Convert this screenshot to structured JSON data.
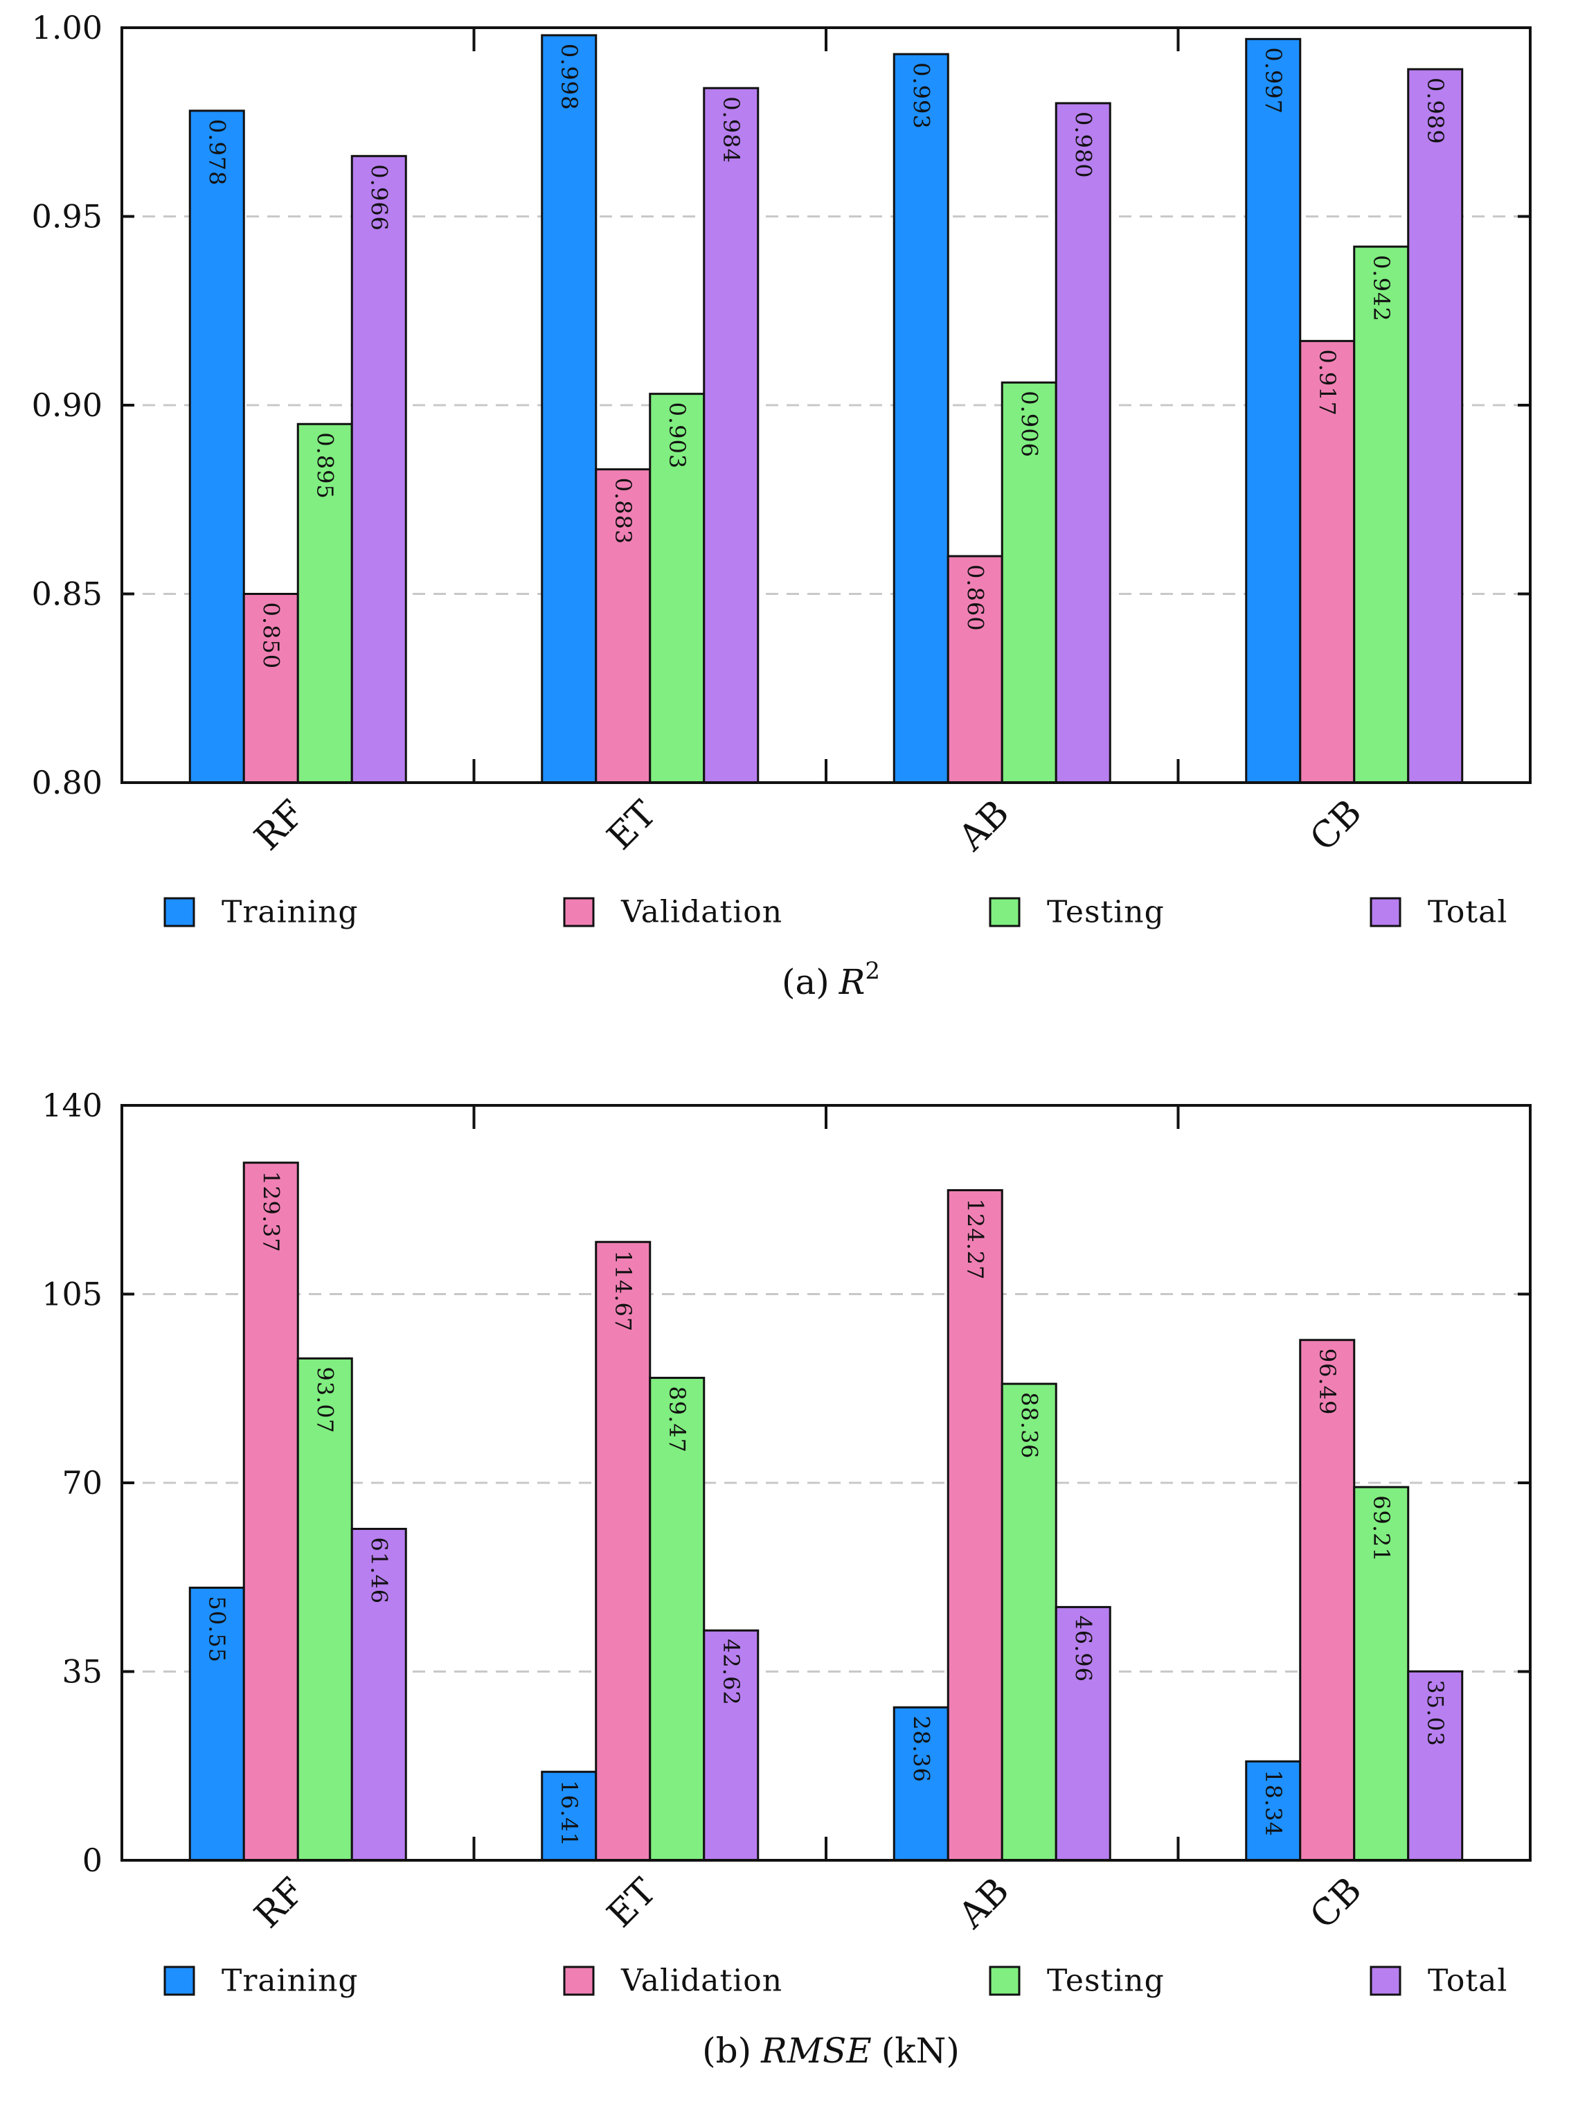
{
  "colors": {
    "Training": "#1e90ff",
    "Validation": "#f080b4",
    "Testing": "#80ee80",
    "Total": "#b87ff0"
  },
  "chart_data": [
    {
      "type": "bar",
      "caption_prefix": "(a)",
      "caption_symbol": "R",
      "caption_sup": "2",
      "categories": [
        "RF",
        "ET",
        "AB",
        "CB"
      ],
      "series": [
        {
          "name": "Training",
          "values": [
            0.978,
            0.998,
            0.993,
            0.997
          ],
          "labels": [
            "0.978",
            "0.998",
            "0.993",
            "0.997"
          ]
        },
        {
          "name": "Validation",
          "values": [
            0.85,
            0.883,
            0.86,
            0.917
          ],
          "labels": [
            "0.850",
            "0.883",
            "0.860",
            "0.917"
          ]
        },
        {
          "name": "Testing",
          "values": [
            0.895,
            0.903,
            0.906,
            0.942
          ],
          "labels": [
            "0.895",
            "0.903",
            "0.906",
            "0.942"
          ]
        },
        {
          "name": "Total",
          "values": [
            0.966,
            0.984,
            0.98,
            0.989
          ],
          "labels": [
            "0.966",
            "0.984",
            "0.980",
            "0.989"
          ]
        }
      ],
      "ylim": [
        0.8,
        1.0
      ],
      "yticks": [
        0.8,
        0.85,
        0.9,
        0.95,
        1.0
      ],
      "ytick_labels": [
        "0.80",
        "0.85",
        "0.90",
        "0.95",
        "1.00"
      ],
      "legend": [
        "Training",
        "Validation",
        "Testing",
        "Total"
      ]
    },
    {
      "type": "bar",
      "caption_prefix": "(b)",
      "caption_symbol": "RMSE",
      "caption_suffix": "(kN)",
      "categories": [
        "RF",
        "ET",
        "AB",
        "CB"
      ],
      "series": [
        {
          "name": "Training",
          "values": [
            50.55,
            16.41,
            28.36,
            18.34
          ],
          "labels": [
            "50.55",
            "16.41",
            "28.36",
            "18.34"
          ]
        },
        {
          "name": "Validation",
          "values": [
            129.37,
            114.67,
            124.27,
            96.49
          ],
          "labels": [
            "129.37",
            "114.67",
            "124.27",
            "96.49"
          ]
        },
        {
          "name": "Testing",
          "values": [
            93.07,
            89.47,
            88.36,
            69.21
          ],
          "labels": [
            "93.07",
            "89.47",
            "88.36",
            "69.21"
          ]
        },
        {
          "name": "Total",
          "values": [
            61.46,
            42.62,
            46.96,
            35.03
          ],
          "labels": [
            "61.46",
            "42.62",
            "46.96",
            "35.03"
          ]
        }
      ],
      "ylim": [
        0,
        140
      ],
      "yticks": [
        0,
        35,
        70,
        105,
        140
      ],
      "ytick_labels": [
        "0",
        "35",
        "70",
        "105",
        "140"
      ],
      "legend": [
        "Training",
        "Validation",
        "Testing",
        "Total"
      ]
    }
  ]
}
